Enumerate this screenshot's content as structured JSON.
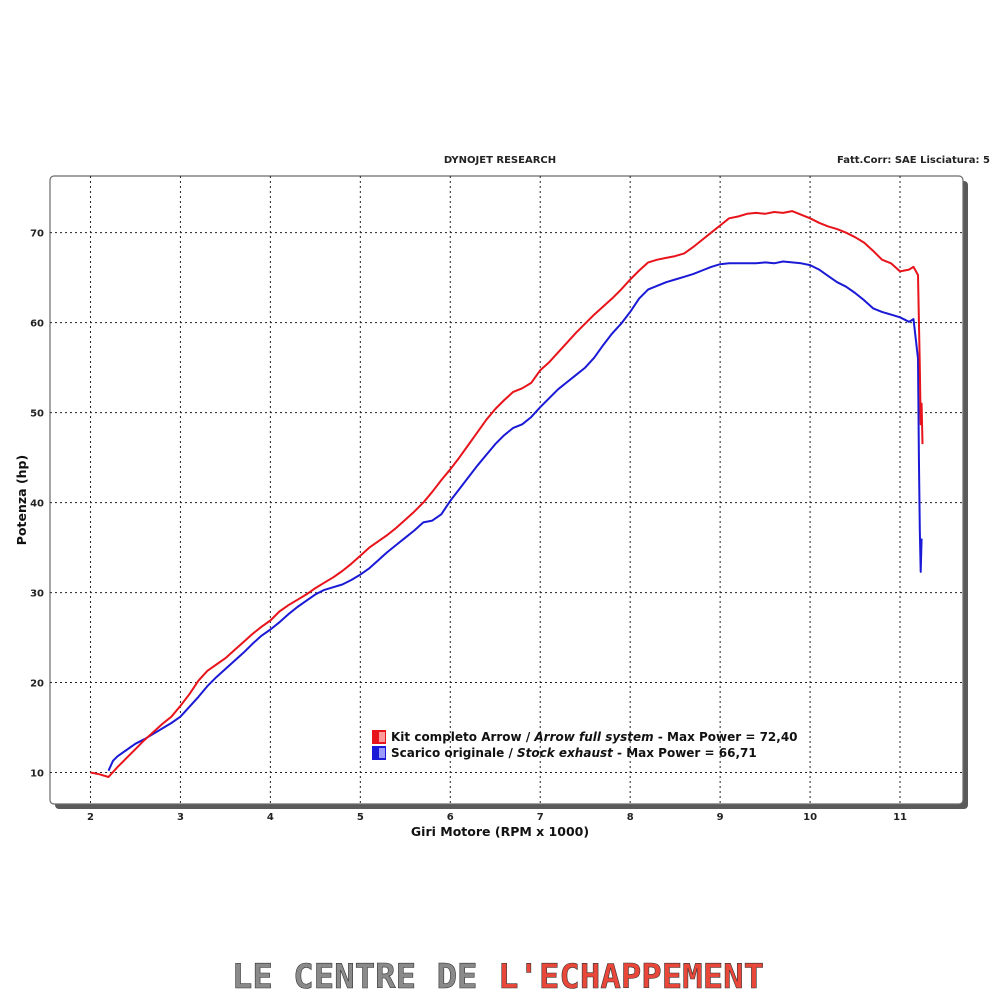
{
  "header": {
    "left": "DYNOJET RESEARCH",
    "right": "Fatt.Corr: SAE  Lisciatura: 5"
  },
  "brand": {
    "part1": "LE CENTRE DE ",
    "part2": "L'ECHAPPEMENT",
    "color1": "#8a8a8a",
    "color2": "#e8473a"
  },
  "chart_data": {
    "type": "line",
    "xlabel": "Giri Motore (RPM x 1000)",
    "ylabel": "Potenza (hp)",
    "xlim": [
      1.55,
      11.7
    ],
    "ylim": [
      6.5,
      76.3
    ],
    "xticks": [
      2,
      3,
      4,
      5,
      6,
      7,
      8,
      9,
      10,
      11
    ],
    "yticks": [
      10,
      20,
      30,
      40,
      50,
      60,
      70
    ],
    "grid": true,
    "legend_position": "bottom-center",
    "series": [
      {
        "name": "Kit completo Arrow / Arrow full system - Max Power = 72,40",
        "legend": {
          "main": "Kit completo Arrow / ",
          "italic": "Arrow full system",
          "suffix": " - Max Power = 72,40"
        },
        "color": "#e8141b",
        "swatch_light": "#ff9a9a",
        "x": [
          2.0,
          2.1,
          2.2,
          2.3,
          2.4,
          2.5,
          2.6,
          2.7,
          2.8,
          2.9,
          3.0,
          3.1,
          3.2,
          3.3,
          3.4,
          3.5,
          3.6,
          3.7,
          3.8,
          3.9,
          4.0,
          4.1,
          4.2,
          4.3,
          4.4,
          4.5,
          4.6,
          4.7,
          4.8,
          4.9,
          5.0,
          5.1,
          5.2,
          5.3,
          5.4,
          5.5,
          5.6,
          5.7,
          5.8,
          5.9,
          6.0,
          6.1,
          6.2,
          6.3,
          6.4,
          6.5,
          6.6,
          6.7,
          6.8,
          6.9,
          7.0,
          7.1,
          7.2,
          7.3,
          7.4,
          7.5,
          7.6,
          7.7,
          7.8,
          7.9,
          8.0,
          8.1,
          8.2,
          8.3,
          8.4,
          8.5,
          8.6,
          8.7,
          8.8,
          8.9,
          9.0,
          9.1,
          9.2,
          9.3,
          9.4,
          9.5,
          9.6,
          9.7,
          9.8,
          9.9,
          10.0,
          10.1,
          10.2,
          10.3,
          10.4,
          10.5,
          10.6,
          10.7,
          10.8,
          10.9,
          11.0,
          11.1,
          11.15,
          11.2,
          11.22,
          11.23,
          11.24,
          11.25
        ],
        "y": [
          10.0,
          9.8,
          9.5,
          10.6,
          11.6,
          12.6,
          13.6,
          14.5,
          15.4,
          16.2,
          17.4,
          18.7,
          20.2,
          21.3,
          22.0,
          22.7,
          23.6,
          24.5,
          25.4,
          26.2,
          26.9,
          27.9,
          28.6,
          29.2,
          29.8,
          30.5,
          31.1,
          31.7,
          32.4,
          33.2,
          34.1,
          35.0,
          35.7,
          36.4,
          37.2,
          38.1,
          39.0,
          40.0,
          41.2,
          42.5,
          43.7,
          45.0,
          46.4,
          47.8,
          49.2,
          50.4,
          51.4,
          52.3,
          52.7,
          53.3,
          54.7,
          55.6,
          56.7,
          57.8,
          58.9,
          59.9,
          60.9,
          61.8,
          62.7,
          63.7,
          64.8,
          65.8,
          66.7,
          67.0,
          67.2,
          67.4,
          67.7,
          68.4,
          69.2,
          70.0,
          70.8,
          71.6,
          71.8,
          72.1,
          72.2,
          72.1,
          72.3,
          72.2,
          72.4,
          72.0,
          71.6,
          71.1,
          70.7,
          70.4,
          70.0,
          69.5,
          68.9,
          68.0,
          67.0,
          66.6,
          65.7,
          65.9,
          66.2,
          65.3,
          55.2,
          48.7,
          51.0,
          46.5
        ]
      },
      {
        "name": "Scarico originale / Stock exhaust - Max Power = 66,71",
        "legend": {
          "main": "Scarico originale / ",
          "italic": "Stock exhaust",
          "suffix": " - Max Power = 66,71"
        },
        "color": "#1a1ad6",
        "swatch_light": "#9a9aff",
        "x": [
          2.2,
          2.25,
          2.3,
          2.4,
          2.5,
          2.6,
          2.7,
          2.8,
          2.9,
          3.0,
          3.1,
          3.2,
          3.3,
          3.4,
          3.5,
          3.6,
          3.7,
          3.8,
          3.9,
          4.0,
          4.1,
          4.2,
          4.3,
          4.4,
          4.5,
          4.6,
          4.7,
          4.8,
          4.9,
          5.0,
          5.1,
          5.2,
          5.3,
          5.4,
          5.5,
          5.6,
          5.7,
          5.8,
          5.9,
          6.0,
          6.1,
          6.2,
          6.3,
          6.4,
          6.5,
          6.6,
          6.7,
          6.8,
          6.9,
          7.0,
          7.1,
          7.2,
          7.3,
          7.4,
          7.5,
          7.6,
          7.7,
          7.8,
          7.9,
          8.0,
          8.1,
          8.2,
          8.3,
          8.4,
          8.5,
          8.6,
          8.7,
          8.8,
          8.9,
          9.0,
          9.1,
          9.2,
          9.3,
          9.4,
          9.5,
          9.6,
          9.7,
          9.8,
          9.9,
          10.0,
          10.1,
          10.2,
          10.3,
          10.4,
          10.5,
          10.6,
          10.7,
          10.8,
          10.9,
          11.0,
          11.1,
          11.15,
          11.2,
          11.21,
          11.22,
          11.23,
          11.24
        ],
        "y": [
          10.2,
          11.3,
          11.8,
          12.5,
          13.2,
          13.7,
          14.3,
          14.9,
          15.5,
          16.2,
          17.3,
          18.4,
          19.6,
          20.6,
          21.5,
          22.4,
          23.3,
          24.3,
          25.2,
          25.9,
          26.7,
          27.6,
          28.4,
          29.1,
          29.8,
          30.3,
          30.6,
          30.9,
          31.4,
          32.0,
          32.7,
          33.6,
          34.5,
          35.3,
          36.1,
          36.9,
          37.8,
          38.0,
          38.7,
          40.2,
          41.5,
          42.8,
          44.1,
          45.3,
          46.5,
          47.5,
          48.3,
          48.7,
          49.5,
          50.6,
          51.6,
          52.6,
          53.4,
          54.2,
          55.0,
          56.1,
          57.5,
          58.8,
          59.9,
          61.2,
          62.7,
          63.7,
          64.1,
          64.5,
          64.8,
          65.1,
          65.4,
          65.8,
          66.2,
          66.5,
          66.6,
          66.6,
          66.6,
          66.6,
          66.7,
          66.6,
          66.8,
          66.7,
          66.6,
          66.4,
          65.9,
          65.2,
          64.5,
          64.0,
          63.3,
          62.5,
          61.6,
          61.2,
          60.9,
          60.6,
          60.1,
          60.4,
          56.0,
          45.0,
          37.0,
          32.3,
          36.0
        ]
      }
    ]
  }
}
